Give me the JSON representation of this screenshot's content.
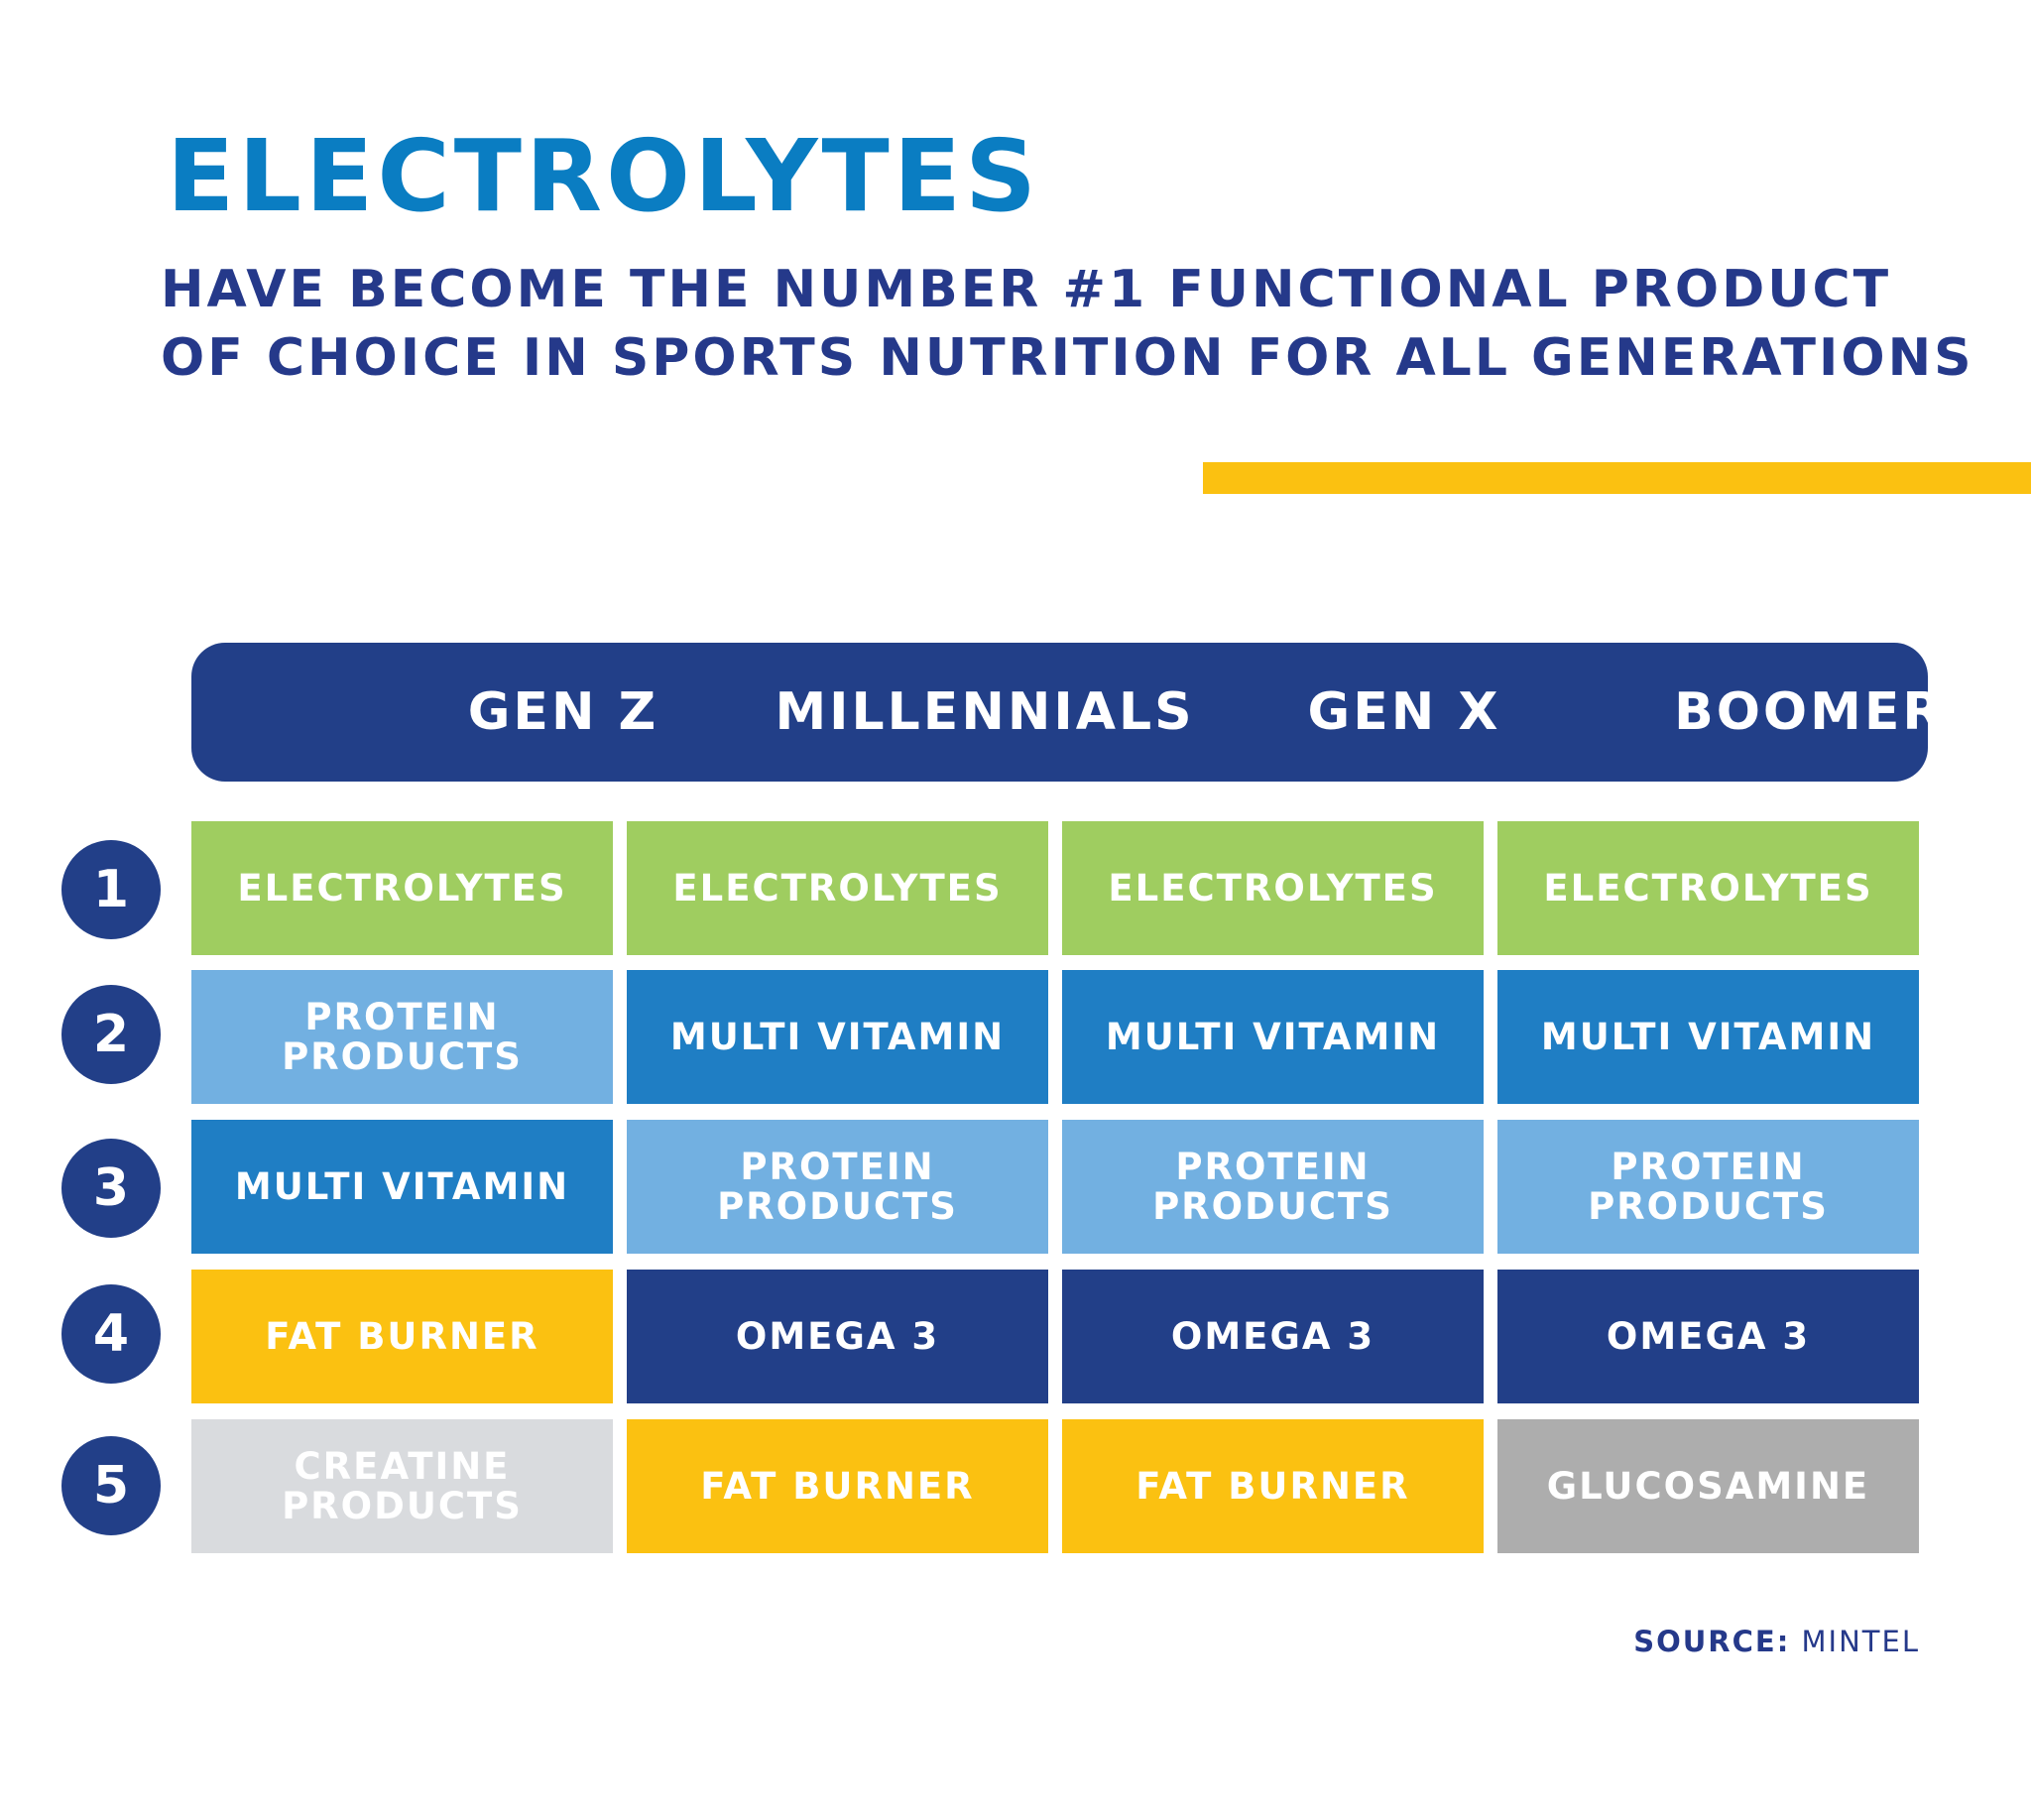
{
  "title": "ELECTROLYTES",
  "subtitle": {
    "line1": "HAVE BECOME THE NUMBER #1 FUNCTIONAL PRODUCT",
    "line2": "OF CHOICE IN SPORTS NUTRITION FOR ALL GENERATIONS"
  },
  "source": {
    "label": "SOURCE:",
    "value": "MINTEL"
  },
  "colors": {
    "title": "#0a7dc2",
    "navy": "#223f88",
    "accent": "#fbc111",
    "green": "#9fcd60",
    "light_blue": "#72b0e1",
    "mid_blue": "#1f7ec4",
    "yellow": "#fbc111",
    "light_gray": "#d9dbde",
    "gray": "#adadad"
  },
  "chart_data": {
    "type": "table",
    "columns": [
      "GEN Z",
      "MILLENNIALS",
      "GEN X",
      "BOOMERS"
    ],
    "ranks": [
      "1",
      "2",
      "3",
      "4",
      "5"
    ],
    "rows": [
      [
        {
          "text": "ELECTROLYTES",
          "color": "#9fcd60"
        },
        {
          "text": "ELECTROLYTES",
          "color": "#9fcd60"
        },
        {
          "text": "ELECTROLYTES",
          "color": "#9fcd60"
        },
        {
          "text": "ELECTROLYTES",
          "color": "#9fcd60"
        }
      ],
      [
        {
          "text": "PROTEIN\nPRODUCTS",
          "color": "#72b0e1"
        },
        {
          "text": "MULTI VITAMIN",
          "color": "#1f7ec4"
        },
        {
          "text": "MULTI VITAMIN",
          "color": "#1f7ec4"
        },
        {
          "text": "MULTI VITAMIN",
          "color": "#1f7ec4"
        }
      ],
      [
        {
          "text": "MULTI VITAMIN",
          "color": "#1f7ec4"
        },
        {
          "text": "PROTEIN\nPRODUCTS",
          "color": "#72b0e1"
        },
        {
          "text": "PROTEIN\nPRODUCTS",
          "color": "#72b0e1"
        },
        {
          "text": "PROTEIN\nPRODUCTS",
          "color": "#72b0e1"
        }
      ],
      [
        {
          "text": "FAT BURNER",
          "color": "#fbc111"
        },
        {
          "text": "OMEGA 3",
          "color": "#223f88"
        },
        {
          "text": "OMEGA 3",
          "color": "#223f88"
        },
        {
          "text": "OMEGA 3",
          "color": "#223f88"
        }
      ],
      [
        {
          "text": "CREATINE\nPRODUCTS",
          "color": "#d9dbde"
        },
        {
          "text": "FAT BURNER",
          "color": "#fbc111"
        },
        {
          "text": "FAT BURNER",
          "color": "#fbc111"
        },
        {
          "text": "GLUCOSAMINE",
          "color": "#adadad"
        }
      ]
    ]
  }
}
